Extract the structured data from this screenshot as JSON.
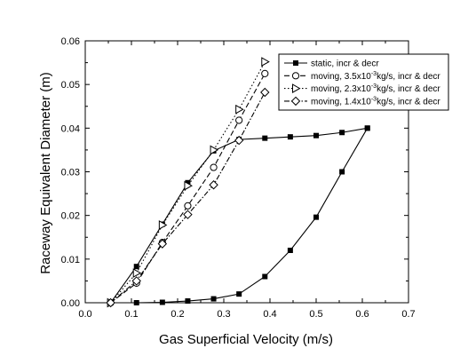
{
  "chart_data": {
    "type": "line",
    "xlabel": "Gas Superficial Velocity (m/s)",
    "ylabel": "Raceway Equivalent Diameter (m)",
    "xlim": [
      0.0,
      0.7
    ],
    "ylim": [
      0.0,
      0.06
    ],
    "x_ticks": [
      "0.0",
      "0.1",
      "0.2",
      "0.3",
      "0.4",
      "0.5",
      "0.6",
      "0.7"
    ],
    "y_ticks": [
      "0.00",
      "0.01",
      "0.02",
      "0.03",
      "0.04",
      "0.05",
      "0.06"
    ],
    "grid": false,
    "legend_position": "top-right",
    "series": [
      {
        "name_parts": [
          "static, incr & decr"
        ],
        "marker": "filled-square",
        "line": "solid",
        "x": [
          0.055,
          0.111,
          0.167,
          0.222,
          0.278,
          0.333,
          0.389,
          0.444,
          0.5,
          0.556,
          0.611
        ],
        "y": [
          0.0,
          0.0,
          0.0001,
          0.0004,
          0.0009,
          0.002,
          0.006,
          0.012,
          0.0196,
          0.03,
          0.04
        ],
        "x_return": [
          0.611,
          0.556,
          0.5,
          0.444,
          0.389,
          0.333,
          0.278,
          0.222,
          0.167,
          0.111,
          0.055
        ],
        "y_return": [
          0.04,
          0.039,
          0.0383,
          0.038,
          0.0377,
          0.0374,
          0.0348,
          0.0275,
          0.018,
          0.0083,
          0.0
        ]
      },
      {
        "name_parts": [
          "moving, 3.5x10",
          "-3",
          "kg/s, incr & decr"
        ],
        "marker": "open-circle",
        "line": "dashed",
        "x": [
          0.055,
          0.111,
          0.167,
          0.222,
          0.278,
          0.333,
          0.389
        ],
        "y": [
          0.0,
          0.0045,
          0.0138,
          0.0222,
          0.031,
          0.0418,
          0.0525
        ]
      },
      {
        "name_parts": [
          "moving, 2.3x10",
          "-3",
          "kg/s, incr & decr"
        ],
        "marker": "open-right-triangle",
        "line": "dotted",
        "x": [
          0.055,
          0.111,
          0.167,
          0.222,
          0.278,
          0.333,
          0.389
        ],
        "y": [
          0.0,
          0.0068,
          0.0178,
          0.0268,
          0.035,
          0.0443,
          0.0552
        ]
      },
      {
        "name_parts": [
          "moving, 1.4x10",
          "-3",
          "kg/s, incr & decr"
        ],
        "marker": "open-diamond",
        "line": "dash-dot",
        "x": [
          0.055,
          0.111,
          0.167,
          0.222,
          0.278,
          0.333,
          0.389
        ],
        "y": [
          0.0,
          0.005,
          0.0135,
          0.0202,
          0.027,
          0.0372,
          0.0482
        ]
      }
    ]
  }
}
